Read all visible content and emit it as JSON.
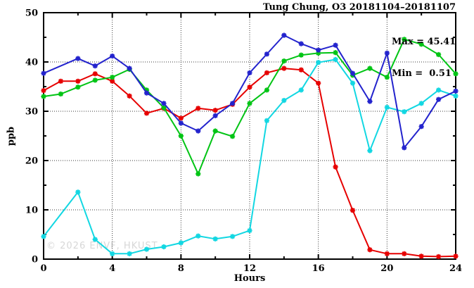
{
  "title": "Tung Chung, O3 20181104–20181107",
  "watermark": "© 2026 ENVF, HKUST",
  "chart_data": {
    "type": "line",
    "title": "Tung Chung, O3 20181104–20181107",
    "xlabel": "Hours",
    "ylabel": "ppb",
    "xlim": [
      0,
      24
    ],
    "ylim": [
      0,
      50
    ],
    "x_major_ticks": [
      0,
      4,
      8,
      12,
      16,
      20,
      24
    ],
    "x_minor_ticks": [
      2,
      6,
      10,
      14,
      18,
      22
    ],
    "y_major_ticks": [
      0,
      10,
      20,
      30,
      40,
      50
    ],
    "y_minor_ticks": [
      5,
      15,
      25,
      35,
      45
    ],
    "grid": true,
    "legend": "none",
    "annotations": [
      "Max = 45.41",
      "Min =  0.51"
    ],
    "max": 45.41,
    "min": 0.51,
    "series": [
      {
        "name": "red",
        "color": "#e60000",
        "points": [
          [
            0,
            34.2
          ],
          [
            1,
            36.1
          ],
          [
            2,
            36.1
          ],
          [
            3,
            37.6
          ],
          [
            4,
            36.1
          ],
          [
            5,
            33.1
          ],
          [
            6,
            29.6
          ],
          [
            7,
            30.6
          ],
          [
            8,
            28.6
          ],
          [
            9,
            30.6
          ],
          [
            10,
            30.2
          ],
          [
            11,
            31.4
          ],
          [
            12,
            34.9
          ],
          [
            13,
            37.8
          ],
          [
            14,
            38.7
          ],
          [
            15,
            38.4
          ],
          [
            16,
            35.7
          ],
          [
            17,
            18.7
          ],
          [
            18,
            9.9
          ],
          [
            19,
            1.9
          ],
          [
            20,
            1.1
          ],
          [
            21,
            1.1
          ],
          [
            22,
            0.6
          ],
          [
            23,
            0.51
          ],
          [
            24,
            0.6
          ]
        ]
      },
      {
        "name": "green",
        "color": "#00c414",
        "points": [
          [
            0,
            33.0
          ],
          [
            1,
            33.5
          ],
          [
            2,
            34.9
          ],
          [
            3,
            36.3
          ],
          [
            4,
            36.9
          ],
          [
            5,
            38.5
          ],
          [
            6,
            34.3
          ],
          [
            7,
            30.7
          ],
          [
            8,
            25.0
          ],
          [
            9,
            17.3
          ],
          [
            10,
            26.0
          ],
          [
            11,
            24.9
          ],
          [
            12,
            31.6
          ],
          [
            13,
            34.3
          ],
          [
            14,
            40.2
          ],
          [
            15,
            41.4
          ],
          [
            16,
            41.8
          ],
          [
            17,
            41.9
          ],
          [
            18,
            37.3
          ],
          [
            19,
            38.7
          ],
          [
            20,
            36.9
          ],
          [
            21,
            44.6
          ],
          [
            22,
            43.6
          ],
          [
            23,
            41.5
          ],
          [
            24,
            37.6
          ]
        ]
      },
      {
        "name": "cyan",
        "color": "#12d7e2",
        "points": [
          [
            0,
            4.6
          ],
          [
            2,
            13.6
          ],
          [
            3,
            4.0
          ],
          [
            4,
            1.1
          ],
          [
            5,
            1.1
          ],
          [
            6,
            2.0
          ],
          [
            7,
            2.5
          ],
          [
            8,
            3.3
          ],
          [
            9,
            4.7
          ],
          [
            10,
            4.1
          ],
          [
            11,
            4.6
          ],
          [
            12,
            5.8
          ],
          [
            13,
            28.1
          ],
          [
            14,
            32.2
          ],
          [
            15,
            34.3
          ],
          [
            16,
            39.9
          ],
          [
            17,
            40.5
          ],
          [
            18,
            35.7
          ],
          [
            19,
            22.0
          ],
          [
            20,
            30.8
          ],
          [
            21,
            29.9
          ],
          [
            22,
            31.6
          ],
          [
            23,
            34.3
          ],
          [
            24,
            33.1
          ]
        ]
      },
      {
        "name": "blue",
        "color": "#2323cd",
        "points": [
          [
            0,
            37.7
          ],
          [
            2,
            40.7
          ],
          [
            3,
            39.2
          ],
          [
            4,
            41.2
          ],
          [
            5,
            38.7
          ],
          [
            6,
            33.7
          ],
          [
            7,
            31.6
          ],
          [
            8,
            27.6
          ],
          [
            9,
            26.0
          ],
          [
            10,
            29.1
          ],
          [
            11,
            31.6
          ],
          [
            12,
            37.8
          ],
          [
            13,
            41.6
          ],
          [
            14,
            45.41
          ],
          [
            15,
            43.7
          ],
          [
            16,
            42.4
          ],
          [
            17,
            43.4
          ],
          [
            18,
            37.7
          ],
          [
            19,
            32.0
          ],
          [
            20,
            41.8
          ],
          [
            21,
            22.6
          ],
          [
            22,
            26.9
          ],
          [
            23,
            32.4
          ],
          [
            24,
            34.1
          ]
        ]
      }
    ]
  }
}
